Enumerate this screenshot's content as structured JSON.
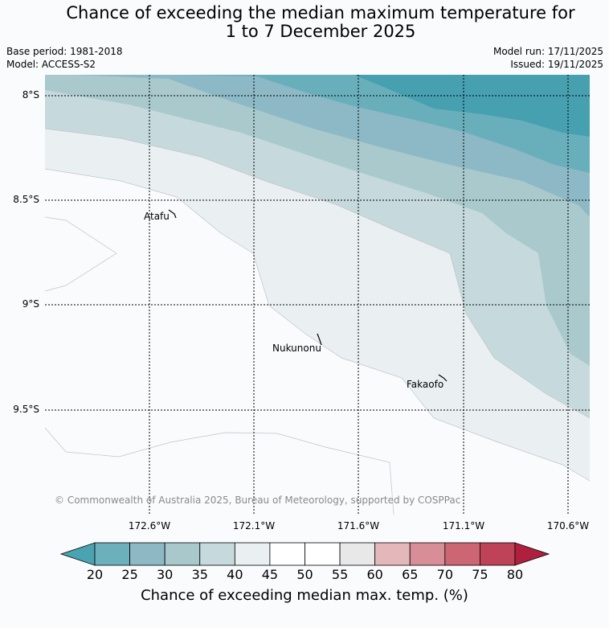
{
  "title": {
    "line1": "Chance of exceeding the median maximum temperature for",
    "line2": "1 to 7 December 2025"
  },
  "meta": {
    "base_period": "Base period: 1981-2018",
    "model": "Model: ACCESS-S2",
    "model_run": "Model run: 17/11/2025",
    "issued": "Issued: 19/11/2025"
  },
  "axes": {
    "lat_labels": [
      "8°S",
      "8.5°S",
      "9°S",
      "9.5°S"
    ],
    "lon_labels": [
      "172.6°W",
      "172.1°W",
      "171.6°W",
      "171.1°W",
      "170.6°W"
    ]
  },
  "places": {
    "atafu": "Atafu",
    "nukunonu": "Nukunonu",
    "fakaofo": "Fakaofo"
  },
  "copyright": "© Commonwealth of Australia 2025, Bureau of Meteorology, supported by COSPPac",
  "colorbar": {
    "ticks": [
      "20",
      "25",
      "30",
      "35",
      "40",
      "45",
      "50",
      "55",
      "60",
      "65",
      "70",
      "75",
      "80"
    ],
    "label": "Chance of exceeding median max. temp. (%)",
    "under_color": "#4aa3b0",
    "over_color": "#b0203e",
    "colors": [
      "#6bb0bb",
      "#8db8c4",
      "#a8c8cc",
      "#c6d9dc",
      "#eaf0f2",
      "#ffffff",
      "#ffffff",
      "#e8e8e8",
      "#e4b7ba",
      "#d78e97",
      "#cb6672",
      "#bf4356"
    ]
  },
  "map_colors": {
    "c20": "#46a0b0",
    "c25": "#69afbb",
    "c30": "#8cb9c5",
    "c35": "#a9c9cc",
    "c40": "#c6d9dc",
    "c45": "#eaf0f2",
    "c50": "#fafbfd"
  }
}
